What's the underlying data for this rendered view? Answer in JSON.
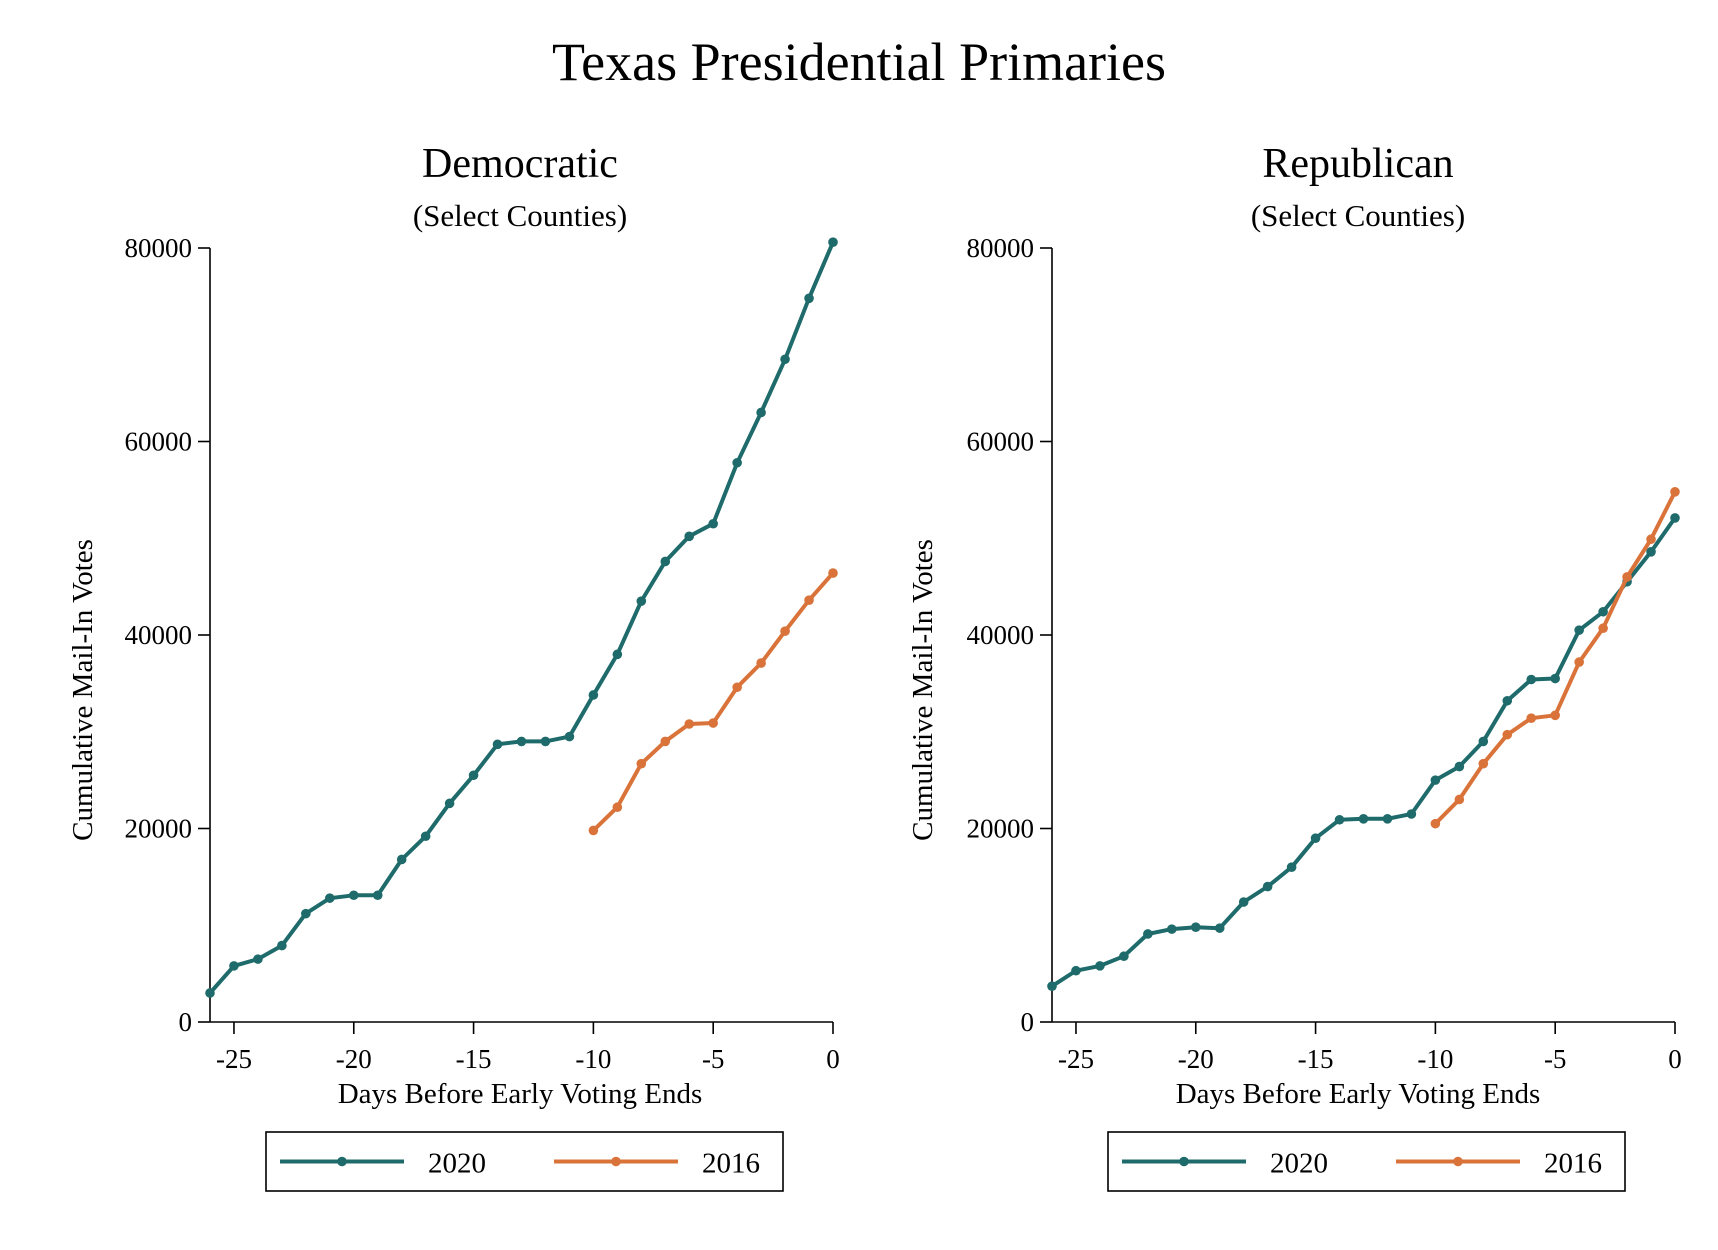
{
  "title": "Texas Presidential Primaries",
  "colors": {
    "series_2020": "#1f6b6b",
    "series_2016": "#d9733a"
  },
  "chart_data": [
    {
      "type": "line",
      "title": "Democratic",
      "subtitle": "(Select Counties)",
      "xlabel": "Days Before Early Voting Ends",
      "ylabel": "Cumulative Mail-In Votes",
      "xlim": [
        -26,
        0
      ],
      "ylim": [
        0,
        80000
      ],
      "xticks": [
        -25,
        -20,
        -15,
        -10,
        -5,
        0
      ],
      "yticks": [
        0,
        20000,
        40000,
        60000,
        80000
      ],
      "grid": false,
      "legend": "bottom",
      "series": [
        {
          "name": "2020",
          "x": [
            -26,
            -25,
            -24,
            -23,
            -22,
            -21,
            -20,
            -19,
            -18,
            -17,
            -16,
            -15,
            -14,
            -13,
            -12,
            -11,
            -10,
            -9,
            -8,
            -7,
            -6,
            -5,
            -4,
            -3,
            -2,
            -1,
            0
          ],
          "y": [
            3000,
            5800,
            6500,
            7900,
            11200,
            12800,
            13100,
            13100,
            16800,
            19200,
            22600,
            25500,
            28700,
            29000,
            29000,
            29500,
            33800,
            38000,
            43500,
            47600,
            50200,
            51500,
            57800,
            63000,
            68500,
            74800,
            80600
          ]
        },
        {
          "name": "2016",
          "x": [
            -10,
            -9,
            -8,
            -7,
            -6,
            -5,
            -4,
            -3,
            -2,
            -1,
            0
          ],
          "y": [
            19800,
            22200,
            26700,
            29000,
            30800,
            30900,
            34600,
            37100,
            40400,
            43600,
            46400
          ]
        }
      ]
    },
    {
      "type": "line",
      "title": "Republican",
      "subtitle": "(Select Counties)",
      "xlabel": "Days Before Early Voting Ends",
      "ylabel": "Cumulative Mail-In Votes",
      "xlim": [
        -26,
        0
      ],
      "ylim": [
        0,
        80000
      ],
      "xticks": [
        -25,
        -20,
        -15,
        -10,
        -5,
        0
      ],
      "yticks": [
        0,
        20000,
        40000,
        60000,
        80000
      ],
      "grid": false,
      "legend": "bottom",
      "series": [
        {
          "name": "2020",
          "x": [
            -26,
            -25,
            -24,
            -23,
            -22,
            -21,
            -20,
            -19,
            -18,
            -17,
            -16,
            -15,
            -14,
            -13,
            -12,
            -11,
            -10,
            -9,
            -8,
            -7,
            -6,
            -5,
            -4,
            -3,
            -2,
            -1,
            0
          ],
          "y": [
            3700,
            5300,
            5800,
            6800,
            9100,
            9600,
            9800,
            9700,
            12400,
            14000,
            16000,
            19000,
            20900,
            21000,
            21000,
            21500,
            25000,
            26400,
            29000,
            33200,
            35400,
            35500,
            40500,
            42400,
            45500,
            48600,
            52100
          ]
        },
        {
          "name": "2016",
          "x": [
            -10,
            -9,
            -8,
            -7,
            -6,
            -5,
            -4,
            -3,
            -2,
            -1,
            0
          ],
          "y": [
            20500,
            23000,
            26700,
            29700,
            31400,
            31700,
            37200,
            40700,
            46000,
            49900,
            54800
          ]
        }
      ]
    }
  ]
}
